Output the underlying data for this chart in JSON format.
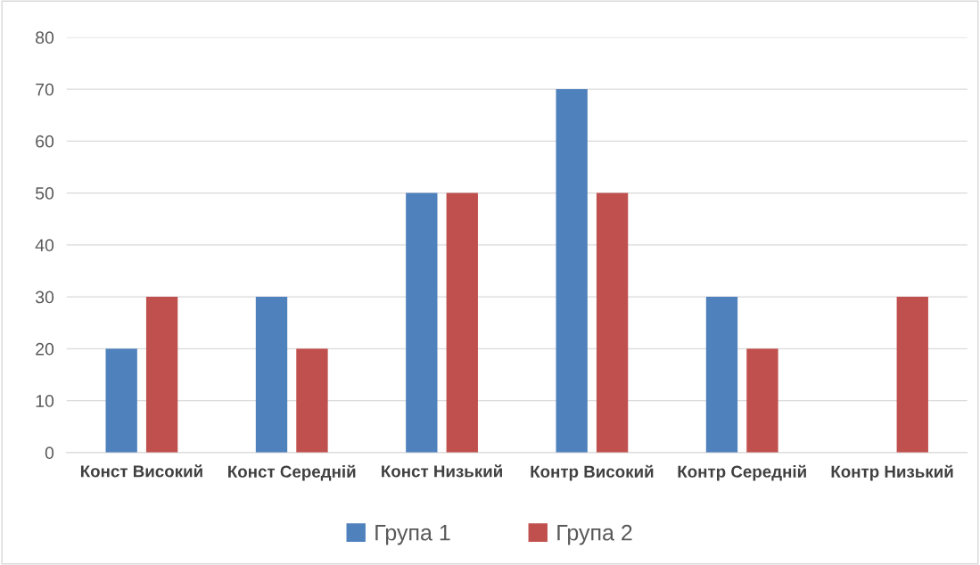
{
  "chart_data": {
    "type": "bar",
    "categories": [
      "Конст Високий",
      "Конст Середній",
      "Конст Низький",
      "Контр Високий",
      "Контр Середній",
      "Контр Низький"
    ],
    "series": [
      {
        "name": "Група 1",
        "color": "#4f81bd",
        "values": [
          20,
          30,
          50,
          70,
          30,
          0
        ]
      },
      {
        "name": "Група 2",
        "color": "#c0504d",
        "values": [
          30,
          20,
          50,
          50,
          20,
          30
        ]
      }
    ],
    "ylim": [
      0,
      80
    ],
    "yticks": [
      0,
      10,
      20,
      30,
      40,
      50,
      60,
      70,
      80
    ],
    "grid": "y",
    "legend": "bottom"
  }
}
